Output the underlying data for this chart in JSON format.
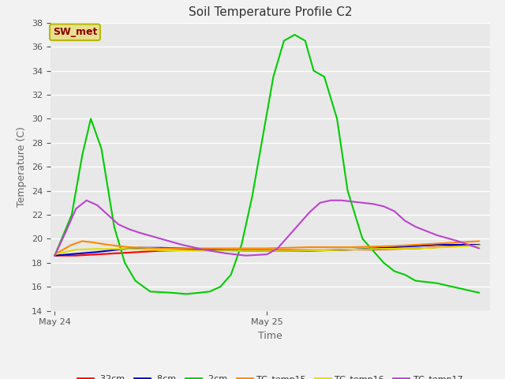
{
  "title": "Soil Temperature Profile C2",
  "xlabel": "Time",
  "ylabel": "Temperature (C)",
  "ylim": [
    14,
    38
  ],
  "yticks": [
    14,
    16,
    18,
    20,
    22,
    24,
    26,
    28,
    30,
    32,
    34,
    36,
    38
  ],
  "annotation_text": "SW_met",
  "annotation_bg": "#e8e090",
  "annotation_fg": "#8b0000",
  "annotation_edge": "#b8b800",
  "series": {
    "-32cm": {
      "color": "#ff0000",
      "x": [
        0,
        0.1,
        0.2,
        0.3,
        0.4,
        0.5,
        0.6,
        0.7,
        0.8,
        0.9,
        1.0,
        1.1,
        1.2,
        1.3,
        1.4,
        1.5,
        1.6,
        1.7,
        1.8,
        1.9,
        2.0
      ],
      "y": [
        18.6,
        18.6,
        18.7,
        18.8,
        18.9,
        19.0,
        19.05,
        19.05,
        19.05,
        19.05,
        19.05,
        19.05,
        19.05,
        19.05,
        19.1,
        19.1,
        19.15,
        19.2,
        19.3,
        19.4,
        19.5
      ]
    },
    "-8cm": {
      "color": "#0000cc",
      "x": [
        0,
        0.1,
        0.2,
        0.3,
        0.4,
        0.5,
        0.6,
        0.7,
        0.8,
        0.9,
        1.0,
        1.1,
        1.2,
        1.3,
        1.4,
        1.5,
        1.6,
        1.7,
        1.8,
        1.9,
        2.0
      ],
      "y": [
        18.6,
        18.75,
        18.9,
        19.1,
        19.25,
        19.25,
        19.2,
        19.1,
        19.05,
        19.0,
        19.0,
        19.0,
        19.0,
        19.05,
        19.1,
        19.2,
        19.3,
        19.4,
        19.5,
        19.5,
        19.5
      ]
    },
    "-2cm": {
      "color": "#00cc00",
      "x": [
        0,
        0.08,
        0.13,
        0.17,
        0.22,
        0.28,
        0.33,
        0.38,
        0.45,
        0.55,
        0.62,
        0.68,
        0.73,
        0.78,
        0.83,
        0.88,
        0.93,
        0.98,
        1.03,
        1.08,
        1.13,
        1.18,
        1.22,
        1.27,
        1.33,
        1.38,
        1.45,
        1.5,
        1.55,
        1.6,
        1.65,
        1.7,
        1.75,
        1.8,
        1.85,
        1.9,
        1.95,
        2.0
      ],
      "y": [
        18.6,
        22.0,
        27.0,
        30.0,
        27.5,
        21.0,
        18.0,
        16.5,
        15.6,
        15.5,
        15.4,
        15.5,
        15.6,
        16.0,
        17.0,
        19.5,
        23.5,
        28.5,
        33.5,
        36.5,
        37.0,
        36.5,
        34.0,
        33.5,
        30.0,
        24.0,
        20.0,
        19.0,
        18.0,
        17.3,
        17.0,
        16.5,
        16.4,
        16.3,
        16.1,
        15.9,
        15.7,
        15.5
      ]
    },
    "TC_temp15": {
      "color": "#ff8800",
      "x": [
        0,
        0.08,
        0.13,
        0.18,
        0.25,
        0.35,
        0.5,
        0.65,
        0.8,
        1.0,
        1.2,
        1.4,
        1.6,
        1.8,
        2.0
      ],
      "y": [
        18.7,
        19.5,
        19.8,
        19.7,
        19.5,
        19.3,
        19.2,
        19.2,
        19.2,
        19.2,
        19.3,
        19.3,
        19.4,
        19.6,
        19.8
      ]
    },
    "TC_temp16": {
      "color": "#dddd00",
      "x": [
        0,
        0.1,
        0.2,
        0.35,
        0.5,
        0.7,
        0.9,
        1.1,
        1.3,
        1.5,
        1.7,
        1.9,
        2.0
      ],
      "y": [
        18.7,
        19.1,
        19.15,
        19.15,
        19.05,
        19.0,
        19.0,
        19.0,
        19.05,
        19.15,
        19.2,
        19.35,
        19.45
      ]
    },
    "TC_temp17": {
      "color": "#bb44cc",
      "x": [
        0,
        0.05,
        0.1,
        0.15,
        0.2,
        0.25,
        0.3,
        0.35,
        0.4,
        0.5,
        0.6,
        0.7,
        0.8,
        0.9,
        1.0,
        1.05,
        1.1,
        1.15,
        1.2,
        1.25,
        1.3,
        1.35,
        1.4,
        1.45,
        1.5,
        1.55,
        1.6,
        1.65,
        1.7,
        1.8,
        1.9,
        2.0
      ],
      "y": [
        18.6,
        20.5,
        22.5,
        23.2,
        22.8,
        22.0,
        21.2,
        20.8,
        20.5,
        20.0,
        19.5,
        19.1,
        18.8,
        18.6,
        18.7,
        19.2,
        20.2,
        21.2,
        22.2,
        23.0,
        23.2,
        23.2,
        23.1,
        23.0,
        22.9,
        22.7,
        22.3,
        21.5,
        21.0,
        20.3,
        19.8,
        19.2
      ]
    }
  },
  "xtick_positions": [
    0.0,
    1.0
  ],
  "xtick_labels": [
    "May 24",
    "May 25"
  ],
  "xlim": [
    -0.02,
    2.05
  ],
  "grid_color": "#ffffff",
  "plot_bg": "#e8e8e8",
  "fig_bg": "#f2f2f2",
  "title_fontsize": 11,
  "axis_label_fontsize": 9,
  "tick_fontsize": 8,
  "legend_fontsize": 8
}
